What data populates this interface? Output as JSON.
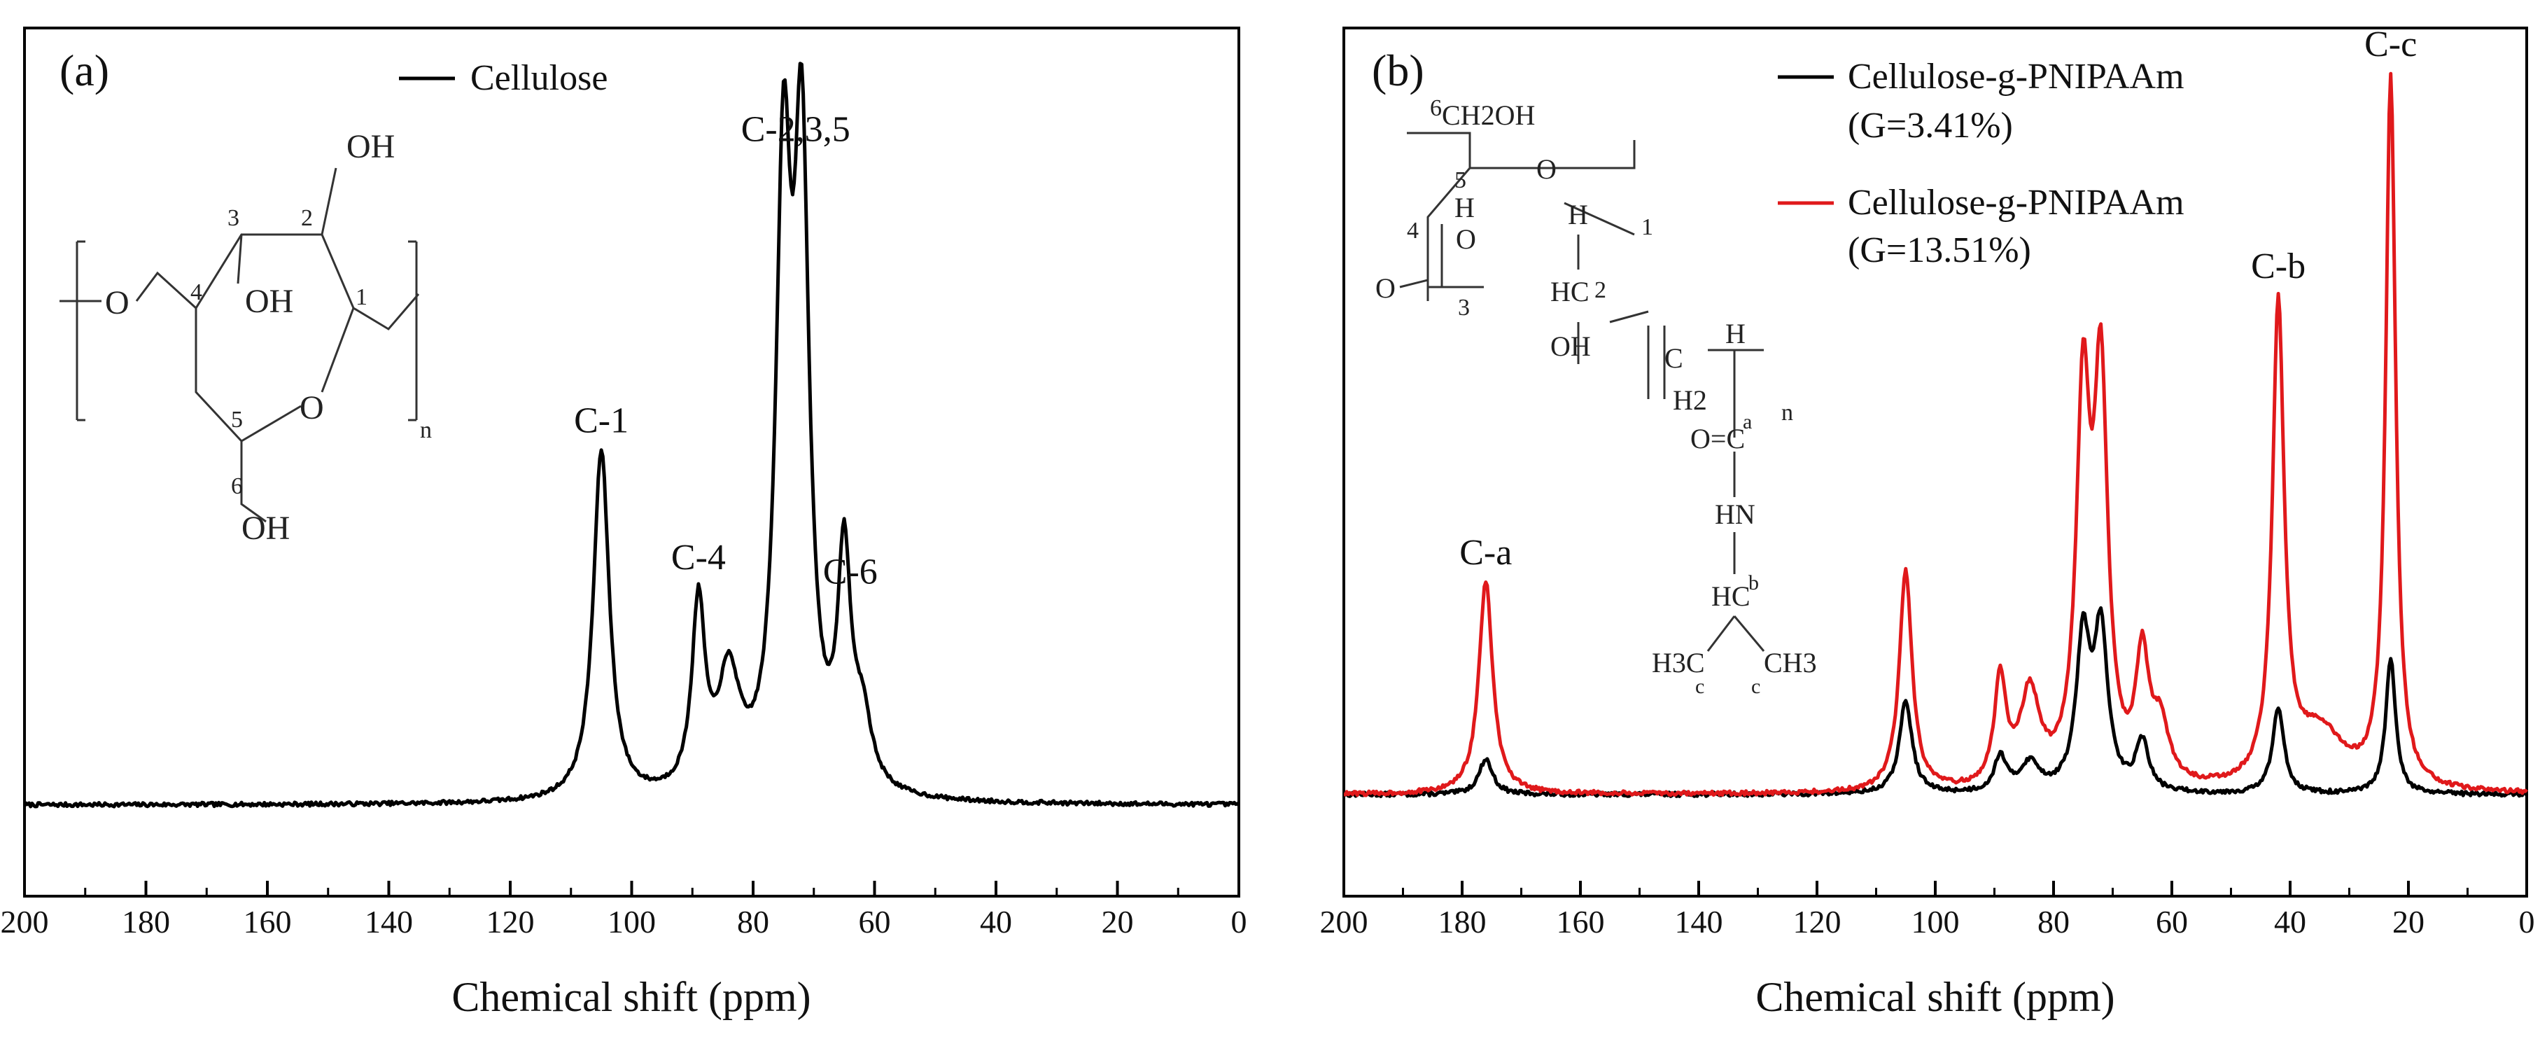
{
  "chart_data": [
    {
      "type": "line",
      "panel": "(a)",
      "xlabel": "Chemical shift (ppm)",
      "ylabel": "",
      "x_reversed": true,
      "xlim": [
        200,
        0
      ],
      "xticks": [
        "200",
        "180",
        "160",
        "140",
        "120",
        "100",
        "80",
        "60",
        "40",
        "20",
        "0"
      ],
      "y_ticks_shown": false,
      "legend": {
        "position": "top-left",
        "entries": [
          "Cellulose"
        ]
      },
      "series": [
        {
          "name": "Cellulose",
          "color": "#000000",
          "peaks": [
            {
              "ppm": 105,
              "height": 0.53,
              "width": 1.6
            },
            {
              "ppm": 89,
              "height": 0.28,
              "width": 1.3
            },
            {
              "ppm": 84,
              "height": 0.17,
              "width": 2.2
            },
            {
              "ppm": 75,
              "height": 0.89,
              "width": 1.5
            },
            {
              "ppm": 72,
              "height": 0.92,
              "width": 1.5
            },
            {
              "ppm": 65,
              "height": 0.34,
              "width": 1.3
            },
            {
              "ppm": 62,
              "height": 0.1,
              "width": 1.8
            }
          ]
        }
      ],
      "annotations": [
        {
          "text": "C-1",
          "x": 105
        },
        {
          "text": "C-4",
          "x": 89
        },
        {
          "text": "C-2,3,5",
          "x": 73
        },
        {
          "text": "C-6",
          "x": 64
        }
      ],
      "structure_labels": [
        "OH",
        "OH",
        "OH",
        "O",
        "O",
        "n",
        "1",
        "2",
        "3",
        "4",
        "5",
        "6"
      ]
    },
    {
      "type": "line",
      "panel": "(b)",
      "xlabel": "Chemical shift (ppm)",
      "ylabel": "",
      "x_reversed": true,
      "xlim": [
        200,
        0
      ],
      "xticks": [
        "200",
        "180",
        "160",
        "140",
        "120",
        "100",
        "80",
        "60",
        "40",
        "20",
        "0"
      ],
      "y_ticks_shown": false,
      "legend": {
        "position": "top-center",
        "entries": [
          "Cellulose-g-PNIPAAm",
          "(G=3.41%)",
          "Cellulose-g-PNIPAAm",
          "(G=13.51%)"
        ]
      },
      "series": [
        {
          "name": "Cellulose-g-PNIPAAm (G=3.41%)",
          "color": "#000000",
          "peaks": [
            {
              "ppm": 176,
              "height": 0.05,
              "width": 1.4
            },
            {
              "ppm": 105,
              "height": 0.13,
              "width": 1.3
            },
            {
              "ppm": 89,
              "height": 0.05,
              "width": 1.2
            },
            {
              "ppm": 84,
              "height": 0.04,
              "width": 2.0
            },
            {
              "ppm": 75,
              "height": 0.21,
              "width": 1.4
            },
            {
              "ppm": 72,
              "height": 0.22,
              "width": 1.4
            },
            {
              "ppm": 65,
              "height": 0.07,
              "width": 1.3
            },
            {
              "ppm": 42,
              "height": 0.12,
              "width": 1.2
            },
            {
              "ppm": 23,
              "height": 0.19,
              "width": 1.0
            }
          ]
        },
        {
          "name": "Cellulose-g-PNIPAAm (G=13.51%)",
          "color": "#e0191b",
          "peaks": [
            {
              "ppm": 176,
              "height": 0.3,
              "width": 1.4
            },
            {
              "ppm": 105,
              "height": 0.31,
              "width": 1.3
            },
            {
              "ppm": 89,
              "height": 0.15,
              "width": 1.2
            },
            {
              "ppm": 84,
              "height": 0.13,
              "width": 2.0
            },
            {
              "ppm": 75,
              "height": 0.53,
              "width": 1.4
            },
            {
              "ppm": 72,
              "height": 0.55,
              "width": 1.4
            },
            {
              "ppm": 65,
              "height": 0.17,
              "width": 1.3
            },
            {
              "ppm": 62,
              "height": 0.08,
              "width": 1.8
            },
            {
              "ppm": 42,
              "height": 0.67,
              "width": 1.2
            },
            {
              "ppm": 35,
              "height": 0.08,
              "width": 5.0
            },
            {
              "ppm": 23,
              "height": 1.0,
              "width": 1.0
            }
          ]
        }
      ],
      "annotations": [
        {
          "text": "C-a",
          "x": 176
        },
        {
          "text": "C-b",
          "x": 42
        },
        {
          "text": "C-c",
          "x": 23
        }
      ],
      "structure_labels": [
        "6",
        "CH2OH",
        "5",
        "H",
        "O",
        "4",
        "O",
        "O",
        "3",
        "1",
        "H",
        "HC",
        "2",
        "OH",
        "C",
        "H",
        "H2",
        "n",
        "O=C",
        "a",
        "HN",
        "HC",
        "b",
        "H3C",
        "c",
        "c",
        "CH3"
      ]
    }
  ]
}
